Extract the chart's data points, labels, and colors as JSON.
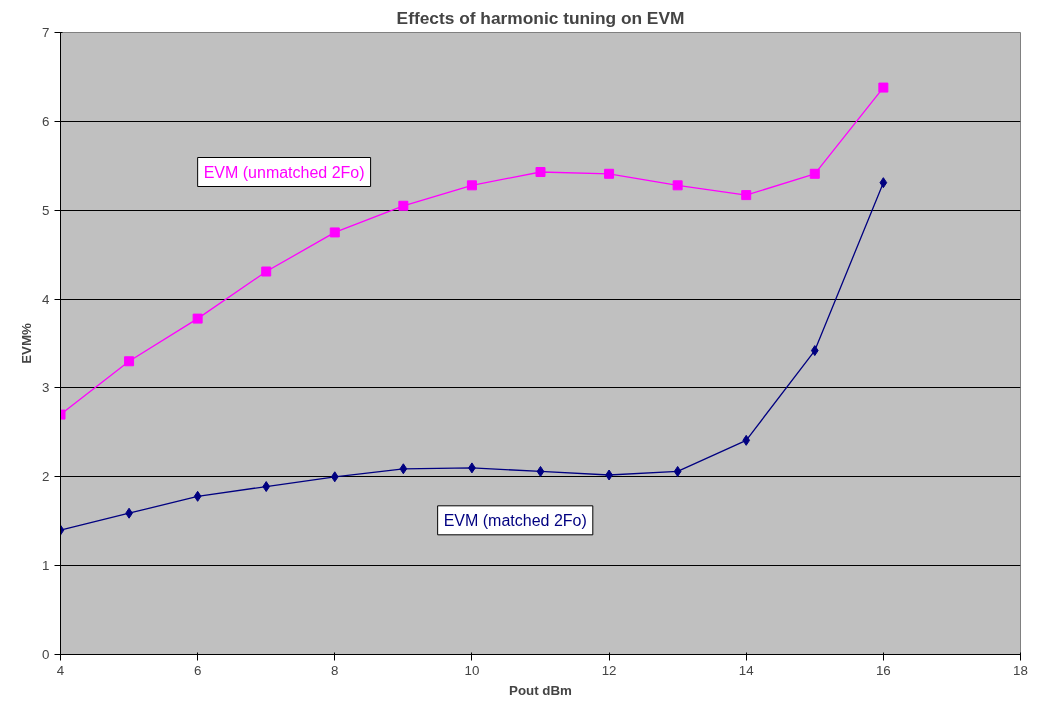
{
  "chart_data": {
    "type": "line",
    "title": "Effects of harmonic tuning on EVM",
    "xlabel": "Pout dBm",
    "ylabel": "EVM%",
    "x": [
      4,
      5,
      6,
      7,
      8,
      9,
      10,
      11,
      12,
      13,
      14,
      15,
      16
    ],
    "series": [
      {
        "name": "EVM (unmatched 2Fo)",
        "color": "#ff00ff",
        "marker": "square",
        "values": [
          2.7,
          3.3,
          3.78,
          4.31,
          4.75,
          5.05,
          5.28,
          5.43,
          5.41,
          5.28,
          5.17,
          5.41,
          6.38
        ]
      },
      {
        "name": "EVM (matched 2Fo)",
        "color": "#000080",
        "marker": "diamond",
        "values": [
          1.4,
          1.59,
          1.78,
          1.89,
          2.0,
          2.09,
          2.1,
          2.06,
          2.02,
          2.06,
          2.41,
          3.42,
          5.31
        ]
      }
    ],
    "xlim": [
      4,
      18
    ],
    "xticks": [
      4,
      6,
      8,
      10,
      12,
      14,
      16,
      18
    ],
    "ylim": [
      0,
      7
    ],
    "yticks": [
      0,
      1,
      2,
      3,
      4,
      5,
      6,
      7
    ],
    "grid": "y"
  }
}
